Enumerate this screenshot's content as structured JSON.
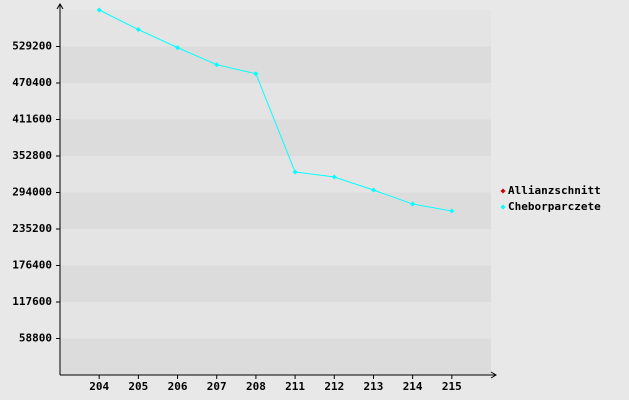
{
  "chart_data": {
    "type": "line",
    "categories": [
      "204",
      "205",
      "206",
      "207",
      "208",
      "211",
      "212",
      "213",
      "214",
      "215"
    ],
    "series": [
      {
        "name": "Allianzschnitt",
        "color": "#cc0000",
        "values": [
          null,
          null,
          null,
          null,
          null,
          null,
          null,
          null,
          null,
          null
        ]
      },
      {
        "name": "Cheborparczete",
        "color": "#00ffff",
        "values": [
          588000,
          556500,
          527400,
          499900,
          485300,
          327100,
          319000,
          298000,
          275400,
          264100
        ]
      }
    ],
    "ylim": [
      0,
      588000
    ],
    "yticks": [
      58800,
      117600,
      176400,
      235200,
      294000,
      352800,
      411600,
      470400,
      529200
    ],
    "legend": "right",
    "grid": true
  }
}
